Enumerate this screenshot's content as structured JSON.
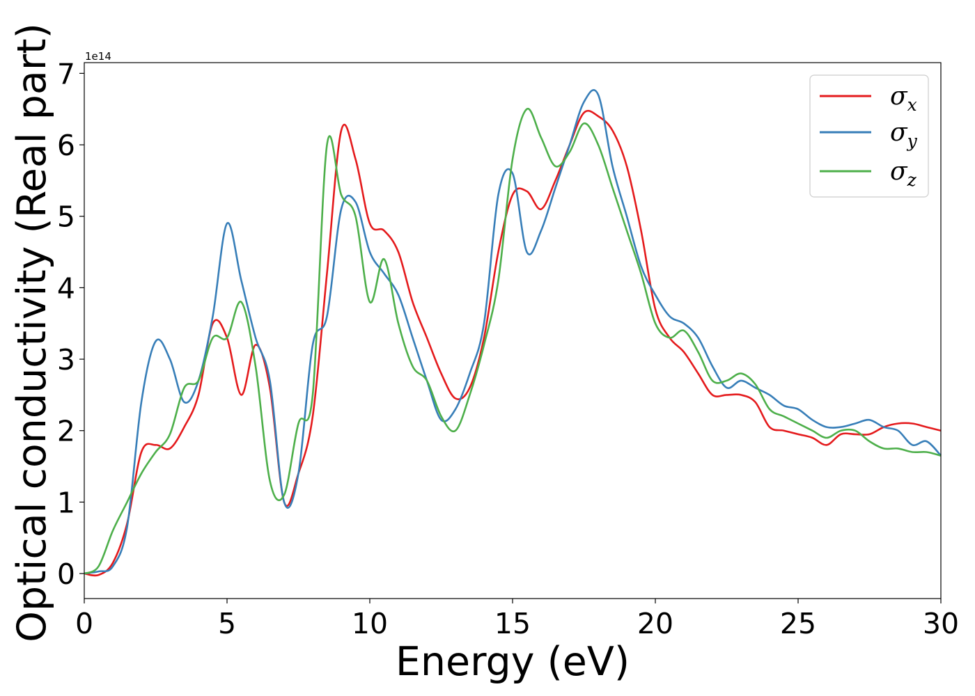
{
  "chart_data": {
    "type": "line",
    "title": "",
    "xlabel": "Energy (eV)",
    "ylabel": "Optical conductivity (Real part)",
    "y_offset_label": "1e14",
    "xlim": [
      0,
      30
    ],
    "ylim": [
      -0.35,
      7.15
    ],
    "x_ticks": [
      0,
      5,
      10,
      15,
      20,
      25,
      30
    ],
    "x_tick_labels": [
      "0",
      "5",
      "10",
      "15",
      "20",
      "25",
      "30"
    ],
    "y_ticks": [
      0,
      1,
      2,
      3,
      4,
      5,
      6,
      7
    ],
    "y_tick_labels": [
      "0",
      "1",
      "2",
      "3",
      "4",
      "5",
      "6",
      "7"
    ],
    "y_unit_multiplier": 100000000000000.0,
    "grid": false,
    "legend_position": "top-right",
    "x": [
      0,
      0.5,
      1,
      1.5,
      2,
      2.5,
      3,
      3.5,
      4,
      4.5,
      5,
      5.5,
      6,
      6.5,
      7,
      7.5,
      8,
      8.5,
      9,
      9.5,
      10,
      10.5,
      11,
      11.5,
      12,
      12.5,
      13,
      13.5,
      14,
      14.5,
      15,
      15.5,
      16,
      16.5,
      17,
      17.5,
      18,
      18.5,
      19,
      19.5,
      20,
      20.5,
      21,
      21.5,
      22,
      22.5,
      23,
      23.5,
      24,
      24.5,
      25,
      25.5,
      26,
      26.5,
      27,
      27.5,
      28,
      28.5,
      29,
      29.5,
      30
    ],
    "series": [
      {
        "name": "σ",
        "subscript": "x",
        "color": "#e41a1c",
        "values": [
          0,
          -0.02,
          0.15,
          0.7,
          1.7,
          1.8,
          1.75,
          2.05,
          2.5,
          3.5,
          3.3,
          2.5,
          3.2,
          2.6,
          1.0,
          1.4,
          2.2,
          4.2,
          6.2,
          5.8,
          4.9,
          4.8,
          4.5,
          3.8,
          3.3,
          2.8,
          2.45,
          2.6,
          3.3,
          4.5,
          5.3,
          5.35,
          5.1,
          5.5,
          6.0,
          6.45,
          6.4,
          6.2,
          5.7,
          4.8,
          3.7,
          3.3,
          3.1,
          2.8,
          2.5,
          2.5,
          2.5,
          2.4,
          2.05,
          2.0,
          1.95,
          1.9,
          1.8,
          1.95,
          1.95,
          1.95,
          2.05,
          2.1,
          2.1,
          2.05,
          2.0
        ]
      },
      {
        "name": "σ",
        "subscript": "y",
        "color": "#377eb8",
        "values": [
          0,
          0.03,
          0.1,
          0.65,
          2.4,
          3.25,
          3.0,
          2.4,
          2.7,
          3.6,
          4.9,
          4.1,
          3.3,
          2.7,
          1.0,
          1.4,
          3.2,
          3.6,
          5.1,
          5.2,
          4.5,
          4.2,
          3.9,
          3.3,
          2.7,
          2.15,
          2.3,
          2.8,
          3.5,
          5.3,
          5.6,
          4.5,
          4.8,
          5.4,
          6.0,
          6.6,
          6.7,
          5.7,
          5.0,
          4.3,
          3.9,
          3.6,
          3.5,
          3.3,
          2.9,
          2.6,
          2.7,
          2.6,
          2.5,
          2.35,
          2.3,
          2.15,
          2.05,
          2.05,
          2.1,
          2.15,
          2.05,
          2.0,
          1.8,
          1.85,
          1.65
        ]
      },
      {
        "name": "σ",
        "subscript": "z",
        "color": "#4daf4a",
        "values": [
          0,
          0.1,
          0.6,
          1.0,
          1.4,
          1.7,
          1.95,
          2.6,
          2.7,
          3.3,
          3.3,
          3.8,
          2.9,
          1.3,
          1.1,
          2.1,
          2.5,
          6.0,
          5.3,
          5.0,
          3.8,
          4.4,
          3.5,
          2.9,
          2.7,
          2.2,
          2.0,
          2.5,
          3.2,
          4.1,
          5.8,
          6.5,
          6.1,
          5.7,
          5.9,
          6.3,
          6.0,
          5.4,
          4.8,
          4.2,
          3.5,
          3.3,
          3.4,
          3.1,
          2.7,
          2.7,
          2.8,
          2.65,
          2.3,
          2.2,
          2.1,
          2.0,
          1.9,
          2.0,
          2.0,
          1.85,
          1.75,
          1.75,
          1.7,
          1.7,
          1.65
        ]
      }
    ]
  }
}
